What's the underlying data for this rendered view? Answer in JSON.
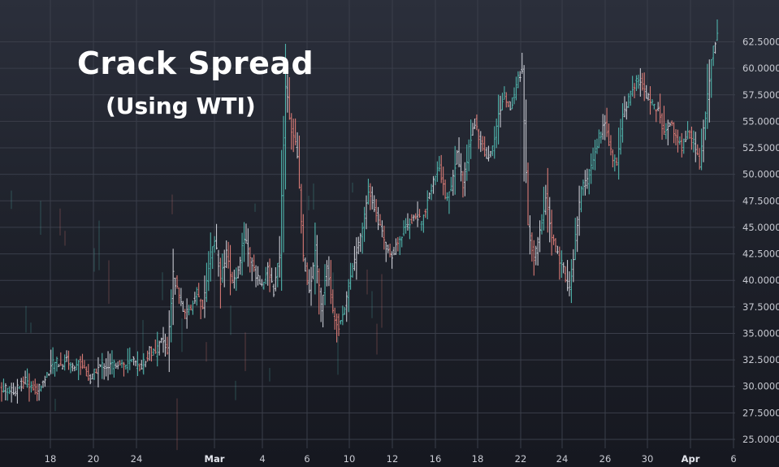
{
  "chart_data": {
    "type": "ohlc",
    "title": "Crack Spread",
    "subtitle": "(Using WTI)",
    "xlabel": "",
    "ylabel": "",
    "ylim": [
      24,
      64.5
    ],
    "y_ticks": [
      "25.0000",
      "27.5000",
      "30.0000",
      "32.5000",
      "35.0000",
      "37.5000",
      "40.0000",
      "42.5000",
      "45.0000",
      "47.5000",
      "50.0000",
      "52.5000",
      "55.0000",
      "57.5000",
      "60.0000",
      "62.5000"
    ],
    "x_ticks": [
      {
        "label": "18",
        "bold": false
      },
      {
        "label": "20",
        "bold": false
      },
      {
        "label": "24",
        "bold": false
      },
      {
        "label": "Mar",
        "bold": true
      },
      {
        "label": "4",
        "bold": false
      },
      {
        "label": "6",
        "bold": false
      },
      {
        "label": "10",
        "bold": false
      },
      {
        "label": "12",
        "bold": false
      },
      {
        "label": "16",
        "bold": false
      },
      {
        "label": "18",
        "bold": false
      },
      {
        "label": "22",
        "bold": false
      },
      {
        "label": "24",
        "bold": false
      },
      {
        "label": "26",
        "bold": false
      },
      {
        "label": "30",
        "bold": false
      },
      {
        "label": "Apr",
        "bold": true
      },
      {
        "label": "6",
        "bold": false
      }
    ],
    "grid": true,
    "colors": {
      "up": "#4fb3ab",
      "down": "#d97a75",
      "neutral": "#c8cad2",
      "grid": "#3a3e4a",
      "label": "#c9cbd3"
    },
    "series": [
      {
        "values": [
          29.5,
          29.8,
          29.4,
          30.2,
          30.5,
          30.0,
          29.6,
          30.4,
          31.5,
          32.4,
          32.0,
          32.6,
          31.8,
          32.2,
          31.7,
          30.5,
          31.6,
          32.0,
          31.9,
          32.1,
          32.3,
          32.0,
          32.4,
          31.8,
          32.2,
          33.4,
          33.0,
          34.4,
          33.3,
          40.5,
          38.6,
          36.6,
          37.4,
          39.0,
          37.1,
          41.5,
          44.0,
          40.0,
          42.5,
          39.8,
          41.0,
          44.2,
          42.0,
          40.5,
          39.6,
          41.0,
          39.0,
          42.4,
          58.5,
          54.2,
          52.0,
          42.0,
          38.9,
          43.0,
          37.5,
          41.5,
          37.0,
          35.8,
          37.5,
          40.5,
          42.7,
          45.0,
          48.5,
          47.0,
          45.0,
          43.0,
          42.5,
          43.5,
          44.7,
          45.5,
          46.0,
          45.5,
          47.5,
          49.5,
          50.6,
          48.0,
          48.5,
          52.0,
          49.0,
          52.5,
          55.0,
          53.0,
          51.5,
          52.5,
          55.5,
          57.5,
          56.0,
          58.5,
          60.0,
          45.0,
          42.0,
          44.5,
          48.0,
          44.0,
          42.5,
          41.0,
          39.0,
          44.0,
          48.5,
          49.5,
          51.5,
          53.5,
          54.8,
          52.0,
          51.0,
          55.5,
          57.0,
          58.5,
          59.0,
          57.5,
          56.5,
          56.0,
          54.0,
          55.0,
          53.5,
          52.5,
          54.0,
          53.0,
          51.0,
          55.5,
          61.0,
          63.5
        ]
      }
    ]
  }
}
